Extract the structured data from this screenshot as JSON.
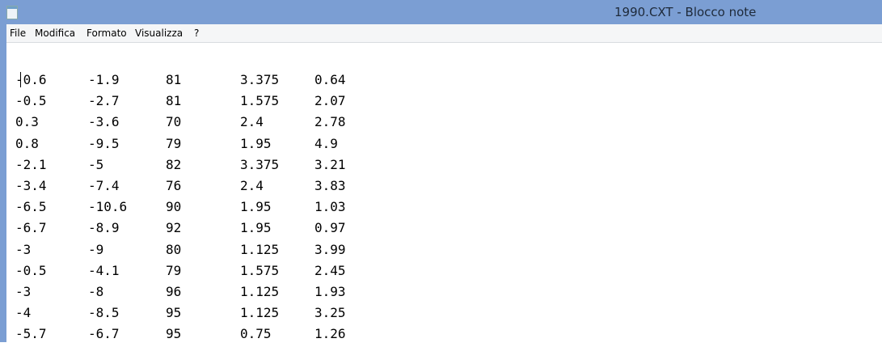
{
  "window": {
    "title": "1990.CXT - Blocco note"
  },
  "menu": [
    "File",
    "Modifica",
    "Formato",
    "Visualizza",
    "?"
  ],
  "table": {
    "rows": [
      [
        "-0.6",
        "-1.9",
        "81",
        "3.375",
        "0.64"
      ],
      [
        "-0.5",
        "-2.7",
        "81",
        "1.575",
        "2.07"
      ],
      [
        "0.3",
        "-3.6",
        "70",
        "2.4",
        "2.78"
      ],
      [
        "0.8",
        "-9.5",
        "79",
        "1.95",
        "4.9"
      ],
      [
        "-2.1",
        "-5",
        "82",
        "3.375",
        "3.21"
      ],
      [
        "-3.4",
        "-7.4",
        "76",
        "2.4",
        "3.83"
      ],
      [
        "-6.5",
        "-10.6",
        "90",
        "1.95",
        "1.03"
      ],
      [
        "-6.7",
        "-8.9",
        "92",
        "1.95",
        "0.97"
      ],
      [
        "-3",
        "-9",
        "80",
        "1.125",
        "3.99"
      ],
      [
        "-0.5",
        "-4.1",
        "79",
        "1.575",
        "2.45"
      ],
      [
        "-3",
        "-8",
        "96",
        "1.125",
        "1.93"
      ],
      [
        "-4",
        "-8.5",
        "95",
        "1.125",
        "3.25"
      ],
      [
        "-5.7",
        "-6.7",
        "95",
        "0.75",
        "1.26"
      ]
    ]
  }
}
